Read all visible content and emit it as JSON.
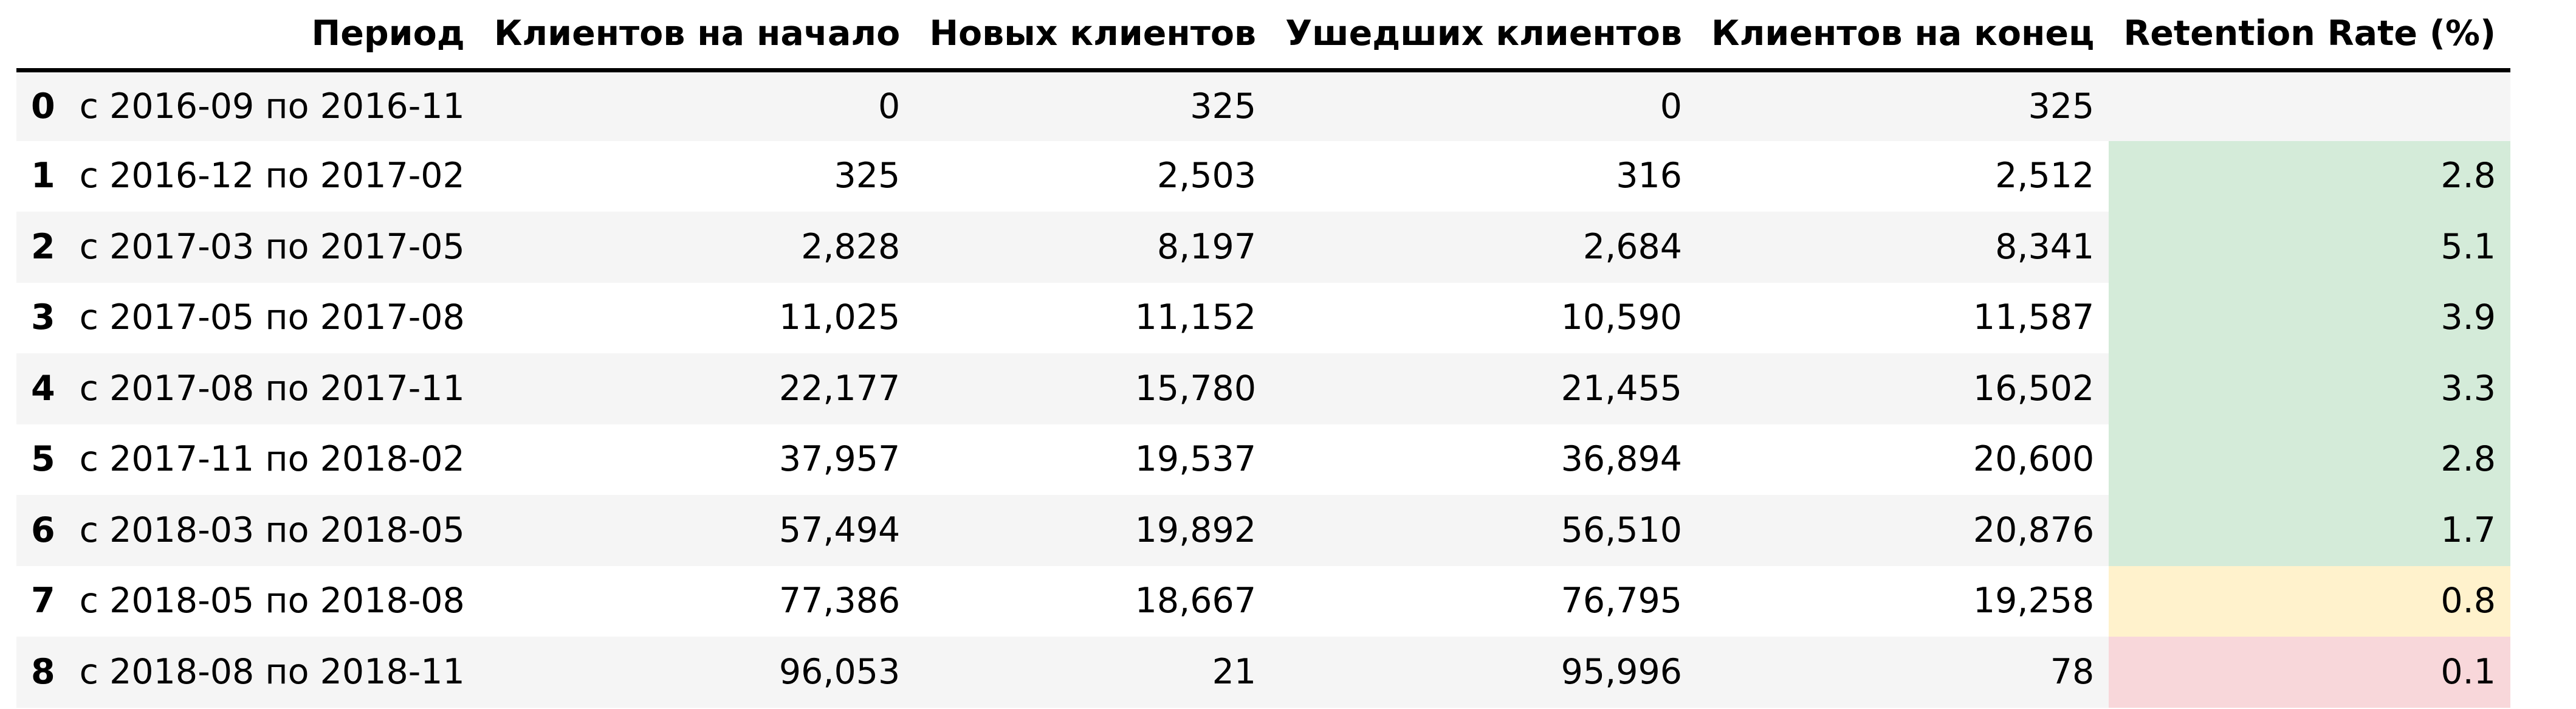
{
  "table": {
    "columns": {
      "index": "",
      "period": "Период",
      "clients_start": "Клиентов на начало",
      "new_clients": "Новых клиентов",
      "churned_clients": "Ушедших клиентов",
      "clients_end": "Клиентов на конец",
      "retention_rate": "Retention Rate (%)"
    },
    "rows": [
      {
        "idx": "0",
        "period": "с 2016-09 по 2016-11",
        "start": "0",
        "new": "325",
        "churned": "0",
        "end": "325",
        "rr": "",
        "rr_color": "transparent"
      },
      {
        "idx": "1",
        "period": "с 2016-12 по 2017-02",
        "start": "325",
        "new": "2,503",
        "churned": "316",
        "end": "2,512",
        "rr": "2.8",
        "rr_color": "#d4ebd9"
      },
      {
        "idx": "2",
        "period": "с 2017-03 по 2017-05",
        "start": "2,828",
        "new": "8,197",
        "churned": "2,684",
        "end": "8,341",
        "rr": "5.1",
        "rr_color": "#d4ebd9"
      },
      {
        "idx": "3",
        "period": "с 2017-05 по 2017-08",
        "start": "11,025",
        "new": "11,152",
        "churned": "10,590",
        "end": "11,587",
        "rr": "3.9",
        "rr_color": "#d4ebd9"
      },
      {
        "idx": "4",
        "period": "с 2017-08 по 2017-11",
        "start": "22,177",
        "new": "15,780",
        "churned": "21,455",
        "end": "16,502",
        "rr": "3.3",
        "rr_color": "#d4ebd9"
      },
      {
        "idx": "5",
        "period": "с 2017-11 по 2018-02",
        "start": "37,957",
        "new": "19,537",
        "churned": "36,894",
        "end": "20,600",
        "rr": "2.8",
        "rr_color": "#d4ebd9"
      },
      {
        "idx": "6",
        "period": "с 2018-03 по 2018-05",
        "start": "57,494",
        "new": "19,892",
        "churned": "56,510",
        "end": "20,876",
        "rr": "1.7",
        "rr_color": "#d4ebd9"
      },
      {
        "idx": "7",
        "period": "с 2018-05 по 2018-08",
        "start": "77,386",
        "new": "18,667",
        "churned": "76,795",
        "end": "19,258",
        "rr": "0.8",
        "rr_color": "#fff2cc"
      },
      {
        "idx": "8",
        "period": "с 2018-08 по 2018-11",
        "start": "96,053",
        "new": "21",
        "churned": "95,996",
        "end": "78",
        "rr": "0.1",
        "rr_color": "#f8d7da"
      }
    ]
  }
}
